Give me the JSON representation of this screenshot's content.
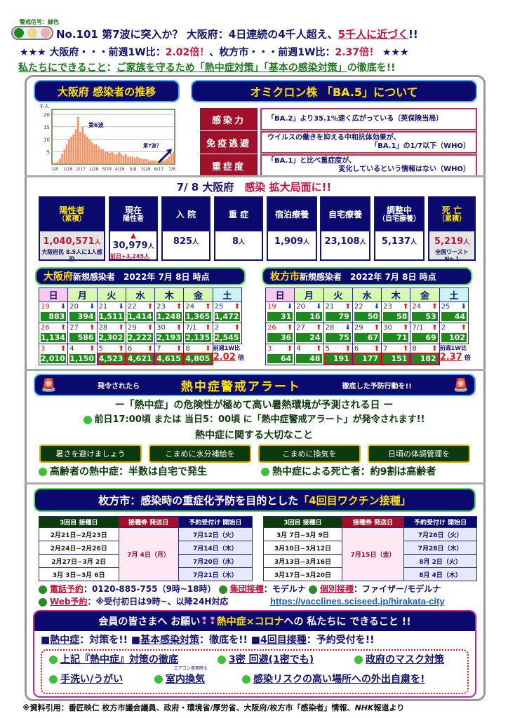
{
  "header": {
    "signal_label": "警戒信号：緑色",
    "line1_prefix": "No.101 第7波に突入か？ 大阪府：4日連続の4千人超え、",
    "line1_emph": "5千人に近づく",
    "line1_suffix": "!!",
    "line2_a": "★★★ 大阪府・・・前週1W比：",
    "line2_b": "2.02倍！",
    "line2_c": "、枚方市・・・前週1W比：",
    "line2_d": "2.37倍！",
    "line2_e": " ★★★",
    "line3_a": "私たちにできること",
    "line3_b": "：",
    "line3_c": "ご家族を守るため「熱中症対策」「基本の感染対策」",
    "line3_d": "の徹底を!!",
    "signal_colors": [
      "#1a8a1a",
      "#e8d890",
      "#e8b0b0"
    ]
  },
  "chart_section": {
    "title": "大阪府 感染者の推移"
  },
  "chart_data": {
    "type": "bar",
    "unit": "千人",
    "yticks": [
      5,
      10,
      15,
      20
    ],
    "ylim": [
      0,
      22
    ],
    "xticks": [
      "1/8",
      "1/28",
      "2/17",
      "1/28",
      "3/29",
      "4/18",
      "5/8",
      "5/28",
      "6/17",
      "7/8"
    ],
    "annotations": [
      "第6波",
      "第7波？"
    ],
    "color": "#f4956a",
    "grid": true,
    "values": [
      0.5,
      0.6,
      1,
      2,
      4,
      6,
      8,
      10,
      11,
      12,
      14,
      19,
      13,
      15,
      12,
      11,
      10,
      9,
      8,
      8,
      7,
      6,
      6,
      5,
      5,
      4.5,
      5,
      4,
      4,
      5,
      4,
      3.5,
      4,
      3,
      3,
      3,
      2.5,
      3,
      2.5,
      2,
      2,
      2,
      1.5,
      1.5,
      1.5,
      1.4,
      1.2,
      1.3,
      1.3,
      1.5,
      2,
      3,
      4,
      4.8
    ]
  },
  "omicron": {
    "title": "オミクロン株 「BA.5」について",
    "rows": [
      {
        "key": "感染力",
        "l1": "「BA.2」より35.1%速く広がっている（英保険当局）",
        "l2": ""
      },
      {
        "key": "免疫逃避",
        "l1": "ウイルスの働きを抑える中和抗体効果が、",
        "l2": "「BA.1」の1/7以下（WHO）"
      },
      {
        "key": "重症度",
        "l1": "「BA.1」と比べ重症度が、",
        "l2": "変化しているという情報はない（WHO）"
      }
    ]
  },
  "status": {
    "title_a": "7/ 8 大阪府",
    "title_b": "感染 拡大局面に!!",
    "unit": "人",
    "cols": [
      {
        "h1": "陽性者",
        "h2": "（累積）",
        "value": "1,040,571",
        "note": "大阪府民 8.5人に1人感染"
      },
      {
        "h1": "現在",
        "h2": "陽性者",
        "value": "30,979",
        "note": "前日+3,245人"
      },
      {
        "h1": "入 院",
        "h2": "",
        "value": "825",
        "note": ""
      },
      {
        "h1": "重 症",
        "h2": "",
        "value": "8",
        "note": ""
      },
      {
        "h1": "宿泊療養",
        "h2": "",
        "value": "1,909",
        "note": ""
      },
      {
        "h1": "自宅療養",
        "h2": "",
        "value": "23,108",
        "note": ""
      },
      {
        "h1": "調整中",
        "h2": "（自宅療養）",
        "value": "5,137",
        "note": ""
      },
      {
        "h1": "死 亡",
        "h2": "（累積）",
        "value": "5,219",
        "note": "全国ワースト No.1"
      }
    ]
  },
  "calendars": [
    {
      "area": "大阪府",
      "title": " 新規感染者　2022年 7月 8日 時点",
      "ratio_label": "前週1W比",
      "ratio": "2.02",
      "ratio_unit": "倍",
      "weeks": [
        [
          [
            "19",
            "down",
            "883"
          ],
          [
            "20",
            "down",
            "394"
          ],
          [
            "21",
            "down",
            "1,511"
          ],
          [
            "22",
            "up",
            "1,414"
          ],
          [
            "23",
            "up",
            "1,248"
          ],
          [
            "24",
            "up",
            "1,365"
          ],
          [
            "25",
            "up",
            "1,472"
          ]
        ],
        [
          [
            "26",
            "up",
            "1,134"
          ],
          [
            "27",
            "up",
            "586"
          ],
          [
            "28",
            "up",
            "2,302"
          ],
          [
            "29",
            "up",
            "2,222"
          ],
          [
            "30",
            "up",
            "2,193"
          ],
          [
            "7/1",
            "up",
            "2,135"
          ],
          [
            "2",
            "up",
            "2,545"
          ]
        ],
        [
          [
            "3",
            "up",
            "2,010"
          ],
          [
            "4",
            "up",
            "1,150"
          ],
          [
            "5",
            "up",
            "4,523",
            1
          ],
          [
            "6",
            "up",
            "4,621",
            1
          ],
          [
            "7",
            "up",
            "4,615",
            1
          ],
          [
            "8",
            "up",
            "4,805",
            1
          ]
        ]
      ]
    },
    {
      "area": "枚方市",
      "title": " 新規感染者　2022年 7月 8日 時点",
      "ratio_label": "前週1W比",
      "ratio": "2.37",
      "ratio_unit": "倍",
      "weeks": [
        [
          [
            "19",
            "down",
            "31"
          ],
          [
            "20",
            "down",
            "16"
          ],
          [
            "21",
            "up",
            "79"
          ],
          [
            "22",
            "down",
            "50"
          ],
          [
            "23",
            "up",
            "58"
          ],
          [
            "24",
            "up",
            "53"
          ],
          [
            "25",
            "down",
            "44"
          ]
        ],
        [
          [
            "26",
            "up",
            "36"
          ],
          [
            "27",
            "up",
            "24"
          ],
          [
            "28",
            "down",
            "75"
          ],
          [
            "29",
            "up",
            "67"
          ],
          [
            "30",
            "up",
            "71"
          ],
          [
            "7/1",
            "up",
            "69"
          ],
          [
            "2",
            "up",
            "102"
          ]
        ],
        [
          [
            "3",
            "up",
            "64"
          ],
          [
            "4",
            "up",
            "48"
          ],
          [
            "5",
            "up",
            "191",
            1
          ],
          [
            "6",
            "up",
            "177",
            1
          ],
          [
            "7",
            "up",
            "151",
            1
          ],
          [
            "8",
            "up",
            "182",
            1
          ]
        ]
      ]
    }
  ],
  "weekdays": [
    "日",
    "月",
    "火",
    "水",
    "木",
    "金",
    "土"
  ],
  "heat": {
    "left": "発令されたら",
    "title": "熱中症警戒アラート",
    "right": "徹底した予防行動を!!",
    "line1": "ー「熱中症」の危険性が極めて高い暑熱環境が予測される日 ー",
    "line2": "前日17:00頃 または 当日5：00頃 に「熱中症警戒アラート」が発令されます!!",
    "line3": "熱中症に関する大切なこと",
    "buttons": [
      "暑さを避けましょう",
      "こまめに水分補給を",
      "こまめに換気を",
      "日頃の体調管理を"
    ],
    "fact1": "高齢者の熱中症：半数は自宅で発生",
    "fact2": "熱中症による死亡者：約9割は高齢者"
  },
  "vaccine": {
    "title_a": "枚方市：感染時の重症化予防を目的とした",
    "title_b": "「4回目ワクチン接種」",
    "headers": [
      "3回目 接種日",
      "接種券 発送日",
      "予約受付け 開始日"
    ],
    "tables": [
      {
        "send": "7月 4日（月）",
        "rows": [
          [
            "2月21日~2月23日",
            "7月12日（火）"
          ],
          [
            "2月24日~2月26日",
            "7月14日（木）"
          ],
          [
            "2月27日~3月 2日",
            "7月20日（水）"
          ],
          [
            "3月 3日~3月 6日",
            "7月21日（木）"
          ]
        ]
      },
      {
        "send": "7月15日（金）",
        "rows": [
          [
            "3月 7日~3月 9日",
            "7月26日（火）"
          ],
          [
            "3月10日~3月12日",
            "7月28日（木）"
          ],
          [
            "3月13日~3月16日",
            "8月 2日（火）"
          ],
          [
            "3月17日~3月20日",
            "8月 4日（木）"
          ]
        ]
      }
    ],
    "tel_label": "電話予約",
    "tel": "：0120-885-755（9時~18時）",
    "group_label": "集団接種",
    "group": "：モデルナ",
    "indiv_label": "個別接種",
    "indiv": "：ファイザー/モデルナ",
    "web_label": "Web予約",
    "web": "：※受付初日は9時~、以降24H対応",
    "url": "https://vacclines.sciseed.jp/hirakata-city"
  },
  "members": {
    "title_a": "会員の皆さまへ お願い",
    "title_b": "熱中症×コロナ",
    "title_c": "への 私たちに できること !!",
    "m1": "熱中症",
    "m1b": "：対策を!!",
    "m2": "基本感染対策",
    "m2b": "：徹底を!!",
    "m3": "4回目接種",
    "m3b": "：予約受付を!!",
    "items": [
      "上記『熱中症』対策の徹底",
      "3密 回避(1密でも)",
      "政府のマスク対策",
      "手洗い/うがい",
      "室内換気",
      "感染リスクの高い場所への外出自粛を!"
    ],
    "aircon_note": "エアコン使用時も"
  },
  "footer": {
    "source": "※資料引用：番匠映仁 枚方市議会議員、政府・環境省/厚労省、大阪府/枚方市「感染者」情報、",
    "nhk": "NHK",
    "tail": "報道より"
  }
}
